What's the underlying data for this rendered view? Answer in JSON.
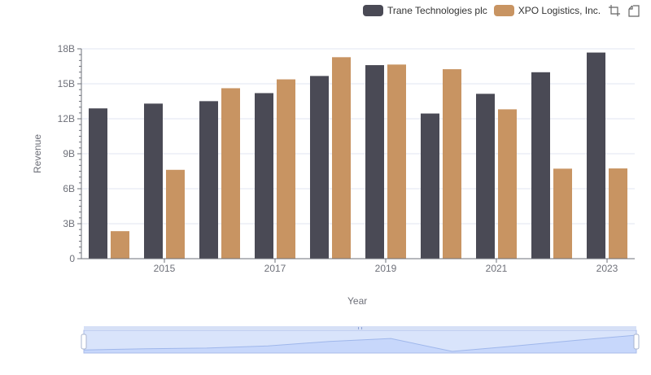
{
  "legend": {
    "items": [
      {
        "label": "Trane Technologies plc",
        "color": "#4a4a55"
      },
      {
        "label": "XPO Logistics, Inc.",
        "color": "#c89462"
      }
    ]
  },
  "toolbox": {
    "icons": [
      "zoom-icon",
      "restore-icon"
    ]
  },
  "chart_data": {
    "type": "bar",
    "x": [
      2014,
      2015,
      2016,
      2017,
      2018,
      2019,
      2020,
      2021,
      2022,
      2023
    ],
    "x_tick_labels": [
      "2015",
      "2017",
      "2019",
      "2021",
      "2023"
    ],
    "y_tick_labels": [
      "0",
      "3B",
      "6B",
      "9B",
      "12B",
      "15B",
      "18B"
    ],
    "ylim": [
      0,
      18000000000
    ],
    "xlabel": "Year",
    "ylabel": "Revenue",
    "grid": true,
    "legend_position": "top-right",
    "series": [
      {
        "name": "Trane Technologies plc",
        "color": "#4a4a55",
        "values": [
          12890000000,
          13300000000,
          13510000000,
          14200000000,
          15670000000,
          16600000000,
          12450000000,
          14140000000,
          15990000000,
          17680000000
        ]
      },
      {
        "name": "XPO Logistics, Inc.",
        "color": "#c89462",
        "values": [
          2360000000,
          7620000000,
          14620000000,
          15380000000,
          17280000000,
          16650000000,
          16250000000,
          12810000000,
          7720000000,
          7740000000
        ]
      }
    ]
  },
  "data_zoom": {
    "range": [
      0,
      100
    ]
  }
}
